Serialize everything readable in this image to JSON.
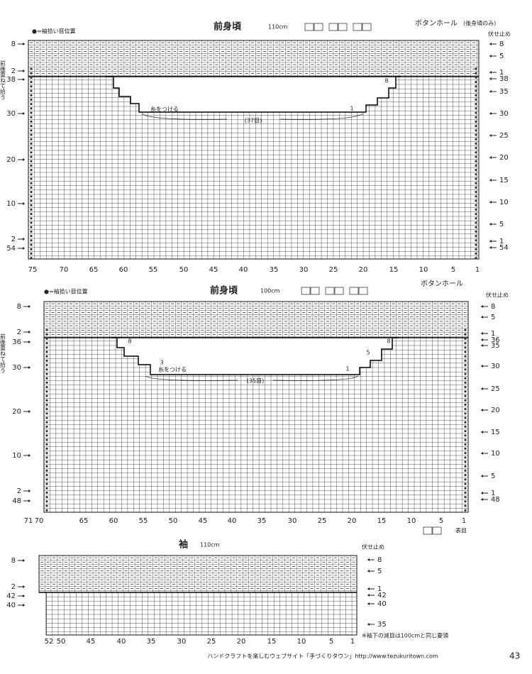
{
  "charts": [
    {
      "legend_note": "●=袖拾い目位置",
      "title": "前身頃",
      "size": "110cm",
      "button_hole": "ボタンホール",
      "button_note": "(後身頃のみ)",
      "bind_off": "伏せ止め",
      "side_note": "前後重ねて拾う",
      "left_rows": [
        "8",
        "2",
        "38",
        "30",
        "20",
        "10",
        "2",
        "54"
      ],
      "right_rows": [
        "8",
        "5",
        "1",
        "38",
        "35",
        "30",
        "25",
        "20",
        "15",
        "10",
        "5",
        "1",
        "54"
      ],
      "stitches": [
        "75",
        "70",
        "65",
        "60",
        "55",
        "50",
        "45",
        "40",
        "35",
        "30",
        "25",
        "20",
        "15",
        "10",
        "5",
        "1"
      ],
      "annotations": [
        "8",
        "1",
        "糸をつける",
        "(37目)"
      ]
    },
    {
      "legend_note": "●=袖拾い目位置",
      "title": "前身頃",
      "size": "100cm",
      "button_hole": "ボタンホール",
      "bind_off": "伏せ止め",
      "side_note": "前後重ねて拾う",
      "left_rows": [
        "8",
        "2",
        "36",
        "30",
        "20",
        "10",
        "2",
        "48"
      ],
      "right_rows": [
        "8",
        "5",
        "1",
        "36",
        "35",
        "30",
        "25",
        "20",
        "15",
        "10",
        "5",
        "1",
        "48"
      ],
      "stitches": [
        "71",
        "70",
        "65",
        "60",
        "55",
        "50",
        "45",
        "40",
        "35",
        "30",
        "25",
        "20",
        "15",
        "10",
        "5",
        "1"
      ],
      "annotations": [
        "8",
        "3",
        "糸をつける",
        "(35目)",
        "8",
        "5",
        "1"
      ],
      "stitch_note": "表目"
    },
    {
      "title": "袖",
      "size": "110cm",
      "bind_off": "伏せ止め",
      "left_rows": [
        "8",
        "2",
        "42",
        "40"
      ],
      "right_rows": [
        "8",
        "5",
        "1",
        "42",
        "40",
        "35"
      ],
      "stitches": [
        "52",
        "50",
        "45",
        "40",
        "35",
        "30",
        "25",
        "20",
        "15",
        "10",
        "5",
        "1"
      ],
      "note": "※袖下の減目は100cmと同じ要領"
    }
  ],
  "footer": {
    "text": "ハンドクラフトを楽しむウェブサイト「手づくりタウン」http://www.tezukuritown.com",
    "page": "43"
  }
}
